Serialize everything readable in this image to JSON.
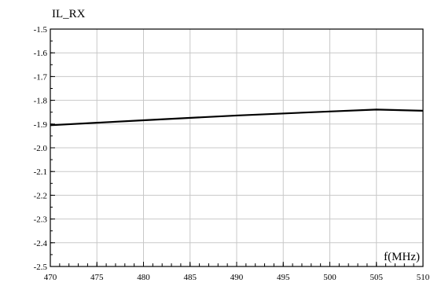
{
  "chart_data": {
    "type": "line",
    "title": "",
    "ylabel": "IL_RX",
    "xlabel": "f(MHz)",
    "xlim": [
      470,
      510
    ],
    "ylim": [
      -2.5,
      -1.5
    ],
    "x_ticks": [
      470,
      475,
      480,
      485,
      490,
      495,
      500,
      505,
      510
    ],
    "x_tick_labels": [
      "470",
      "475",
      "480",
      "485",
      "490",
      "495",
      "500",
      "505",
      "510"
    ],
    "y_ticks": [
      -1.5,
      -1.6,
      -1.7,
      -1.8,
      -1.9,
      -2.0,
      -2.1,
      -2.2,
      -2.3,
      -2.4,
      -2.5
    ],
    "y_tick_labels": [
      "-1.5",
      "-1.6",
      "-1.7",
      "-1.8",
      "-1.9",
      "-2.0",
      "-2.1",
      "-2.2",
      "-2.3",
      "-2.4",
      "-2.5"
    ],
    "x_minor_step": 1,
    "y_minor_step": 0.05,
    "grid": true,
    "series": [
      {
        "x": [
          470,
          480,
          490,
          500,
          505,
          510
        ],
        "y": [
          -1.905,
          -1.884,
          -1.864,
          -1.847,
          -1.839,
          -1.844
        ]
      }
    ],
    "colors": {
      "line": "#000000",
      "grid": "#c8c8c8",
      "axis": "#000000"
    }
  }
}
